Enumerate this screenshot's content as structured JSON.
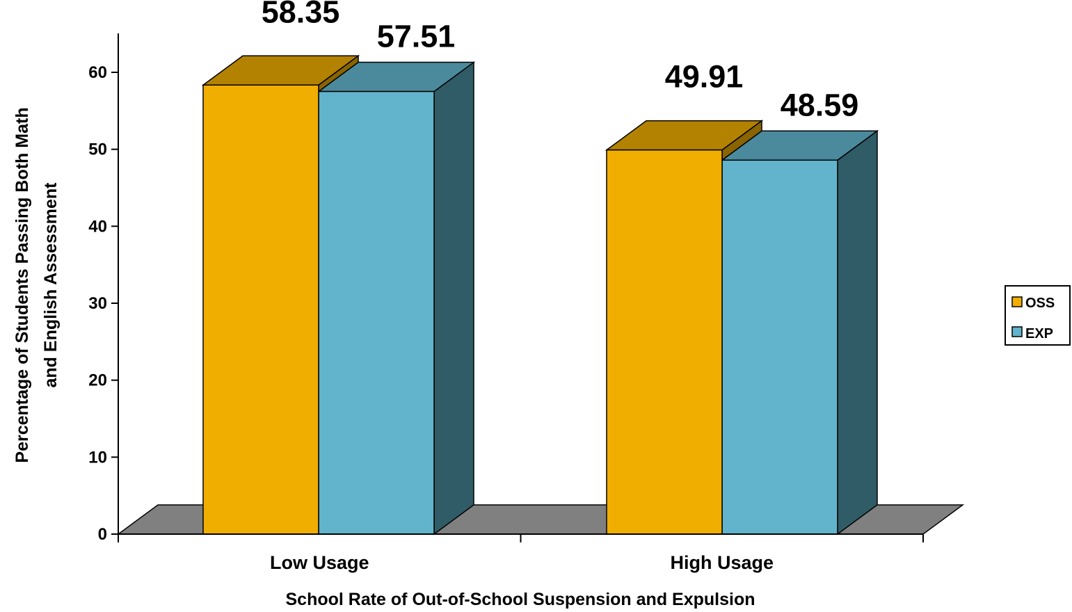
{
  "chart_data": {
    "type": "bar",
    "subtype": "3d-clustered-column",
    "categories": [
      "Low Usage",
      "High Usage"
    ],
    "series": [
      {
        "name": "OSS",
        "values": [
          58.35,
          49.91
        ],
        "color": "#F0AE00",
        "top_color": "#B38200"
      },
      {
        "name": "EXP",
        "values": [
          57.51,
          48.59
        ],
        "color": "#62B4CC",
        "side_color": "#2F5C66",
        "top_color": "#4A8A9C"
      }
    ],
    "data_labels": [
      "58.35",
      "57.51",
      "49.91",
      "48.59"
    ],
    "xlabel": "School Rate of Out-of-School Suspension and Expulsion",
    "ylabel_lines": [
      "Percentage of Students Passing Both Math",
      "and English Assessment"
    ],
    "ylim": [
      0,
      60
    ],
    "yticks": [
      "0",
      "10",
      "20",
      "30",
      "40",
      "50",
      "60"
    ],
    "grid": false,
    "legend": "right",
    "floor_color": "#808080"
  }
}
